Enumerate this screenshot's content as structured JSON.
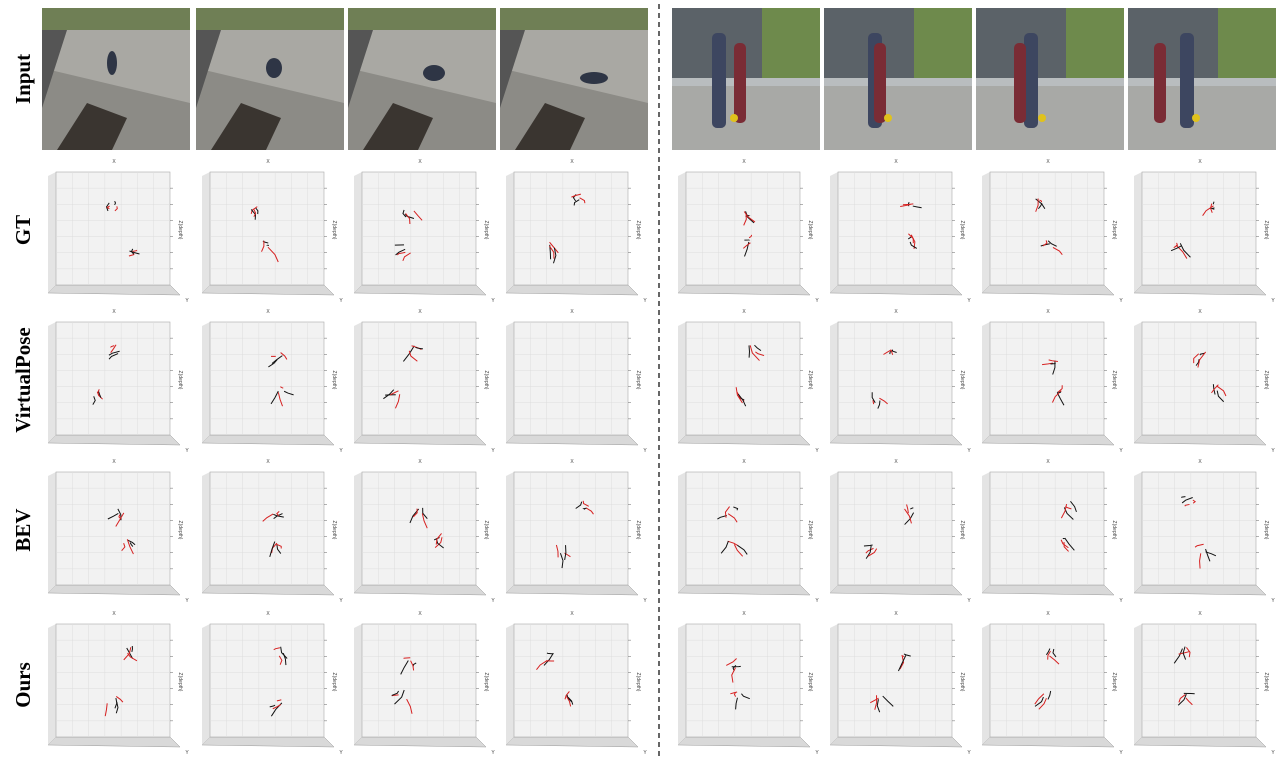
{
  "figure": {
    "row_labels": [
      "Input",
      "GT",
      "VirtualPose",
      "BEV",
      "Ours"
    ],
    "axis_labels": {
      "x": "X",
      "y": "Y",
      "z": "Z(depth)"
    }
  }
}
